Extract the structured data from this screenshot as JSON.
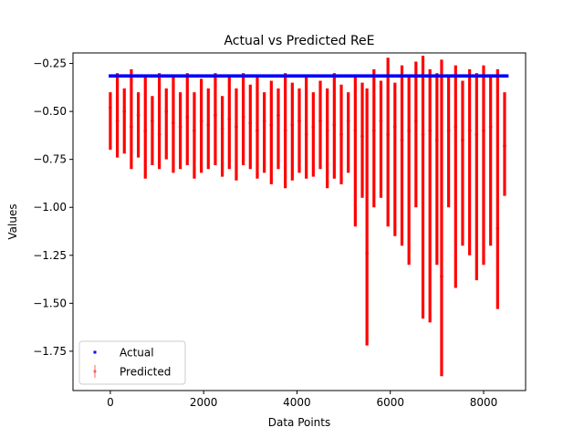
{
  "chart_data": {
    "type": "line",
    "title": "Actual vs Predicted ReE",
    "xlabel": "Data Points",
    "ylabel": "Values",
    "xlim": [
      -800,
      8900
    ],
    "ylim": [
      -1.955,
      -0.195
    ],
    "xticks": [
      0,
      2000,
      4000,
      6000,
      8000
    ],
    "xtick_labels": [
      "0",
      "2000",
      "4000",
      "6000",
      "8000"
    ],
    "yticks": [
      -0.25,
      -0.5,
      -0.75,
      -1.0,
      -1.25,
      -1.5,
      -1.75
    ],
    "ytick_labels": [
      "−0.25",
      "−0.50",
      "−0.75",
      "−1.00",
      "−1.25",
      "−1.50",
      "−1.75"
    ],
    "grid": false,
    "legend_position": "lower-left",
    "series": [
      {
        "name": "Actual",
        "kind": "scatter",
        "color": "#0000ff",
        "x_start": 0,
        "x_end": 8500,
        "x_step": 50,
        "value": -0.315
      },
      {
        "name": "Predicted",
        "kind": "errorbar",
        "color": "#ff0000",
        "x": [
          0,
          150,
          300,
          450,
          600,
          750,
          900,
          1050,
          1200,
          1350,
          1500,
          1650,
          1800,
          1950,
          2100,
          2250,
          2400,
          2550,
          2700,
          2850,
          3000,
          3150,
          3300,
          3450,
          3600,
          3750,
          3900,
          4050,
          4200,
          4350,
          4500,
          4650,
          4800,
          4950,
          5100,
          5250,
          5400,
          5500,
          5650,
          5800,
          5950,
          6100,
          6250,
          6400,
          6550,
          6700,
          6850,
          7000,
          7100,
          7250,
          7400,
          7550,
          7700,
          7850,
          8000,
          8150,
          8300,
          8450
        ],
        "values": [
          -0.48,
          -0.55,
          -0.5,
          -0.58,
          -0.52,
          -0.6,
          -0.55,
          -0.62,
          -0.5,
          -0.56,
          -0.58,
          -0.53,
          -0.6,
          -0.55,
          -0.57,
          -0.52,
          -0.59,
          -0.54,
          -0.58,
          -0.53,
          -0.56,
          -0.6,
          -0.55,
          -0.57,
          -0.52,
          -0.6,
          -0.57,
          -0.55,
          -0.62,
          -0.58,
          -0.55,
          -0.6,
          -0.57,
          -0.62,
          -0.55,
          -0.6,
          -0.63,
          -1.24,
          -0.6,
          -0.55,
          -0.62,
          -0.58,
          -0.65,
          -0.6,
          -0.55,
          -0.62,
          -0.6,
          -0.65,
          -1.36,
          -0.6,
          -0.58,
          -0.65,
          -0.6,
          -0.62,
          -0.6,
          -0.58,
          -1.11,
          -0.68
        ],
        "lower": [
          -0.7,
          -0.74,
          -0.72,
          -0.8,
          -0.74,
          -0.85,
          -0.78,
          -0.8,
          -0.75,
          -0.82,
          -0.8,
          -0.78,
          -0.85,
          -0.82,
          -0.8,
          -0.78,
          -0.84,
          -0.8,
          -0.86,
          -0.78,
          -0.8,
          -0.85,
          -0.82,
          -0.88,
          -0.8,
          -0.9,
          -0.86,
          -0.82,
          -0.85,
          -0.84,
          -0.8,
          -0.9,
          -0.85,
          -0.88,
          -0.82,
          -1.1,
          -0.95,
          -1.72,
          -1.0,
          -0.95,
          -1.1,
          -1.15,
          -1.2,
          -1.3,
          -1.0,
          -1.58,
          -1.6,
          -1.3,
          -1.88,
          -1.0,
          -1.42,
          -1.2,
          -1.25,
          -1.38,
          -1.3,
          -1.2,
          -1.53,
          -0.94
        ],
        "upper": [
          -0.4,
          -0.3,
          -0.38,
          -0.28,
          -0.4,
          -0.32,
          -0.42,
          -0.3,
          -0.38,
          -0.32,
          -0.4,
          -0.3,
          -0.4,
          -0.33,
          -0.38,
          -0.3,
          -0.42,
          -0.32,
          -0.38,
          -0.3,
          -0.36,
          -0.32,
          -0.4,
          -0.34,
          -0.38,
          -0.3,
          -0.35,
          -0.38,
          -0.32,
          -0.4,
          -0.34,
          -0.38,
          -0.3,
          -0.36,
          -0.4,
          -0.32,
          -0.35,
          -0.38,
          -0.28,
          -0.34,
          -0.22,
          -0.35,
          -0.26,
          -0.32,
          -0.24,
          -0.21,
          -0.28,
          -0.3,
          -0.23,
          -0.32,
          -0.26,
          -0.34,
          -0.28,
          -0.3,
          -0.26,
          -0.32,
          -0.28,
          -0.4
        ]
      }
    ]
  }
}
